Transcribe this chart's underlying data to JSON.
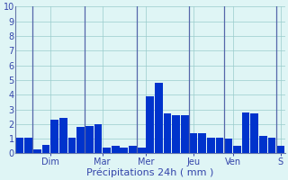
{
  "values": [
    1.1,
    1.1,
    0.3,
    0.6,
    2.3,
    2.4,
    1.1,
    1.8,
    1.9,
    2.0,
    0.4,
    0.5,
    0.4,
    0.5,
    0.4,
    3.9,
    4.8,
    2.7,
    2.6,
    2.6,
    1.4,
    1.4,
    1.1,
    1.1,
    1.0,
    0.5,
    2.8,
    2.7,
    1.2,
    1.1,
    0.5
  ],
  "day_labels": [
    "Dim",
    "Mar",
    "Mer",
    "Jeu",
    "Ven",
    "S"
  ],
  "day_tick_positions": [
    3.5,
    9.5,
    14.5,
    20.0,
    24.5,
    30.0
  ],
  "day_vline_positions": [
    1.5,
    7.5,
    13.5,
    19.5,
    23.5,
    29.5
  ],
  "xlabel": "Précipitations 24h ( mm )",
  "ylim": [
    0,
    10
  ],
  "yticks": [
    0,
    1,
    2,
    3,
    4,
    5,
    6,
    7,
    8,
    9,
    10
  ],
  "bar_color": "#0033cc",
  "background_color": "#dff5f5",
  "grid_color": "#99cccc",
  "vline_color": "#5566aa",
  "spine_color": "#6677aa",
  "label_color": "#3344aa",
  "xlabel_fontsize": 8,
  "tick_labelsize": 7
}
